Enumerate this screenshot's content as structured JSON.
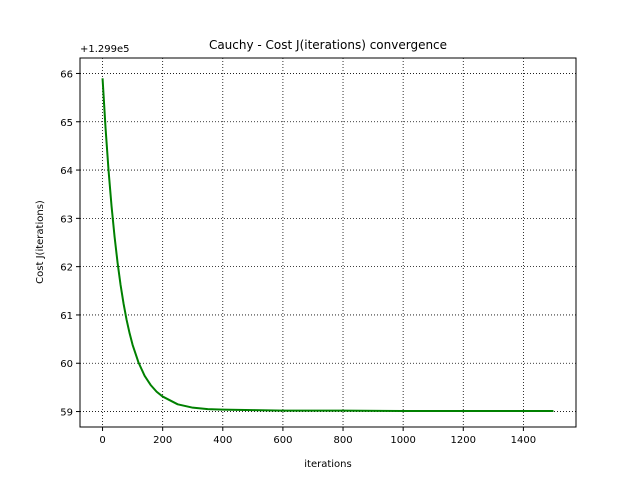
{
  "chart_data": {
    "type": "line",
    "title": "Cauchy - Cost J(iterations) convergence",
    "xlabel": "iterations",
    "ylabel": "Cost J(iterations)",
    "y_offset_label": "+1.299e5",
    "xlim": [
      -75,
      1575
    ],
    "ylim": [
      58.68,
      66.32
    ],
    "grid": true,
    "x_ticks": [
      0,
      200,
      400,
      600,
      800,
      1000,
      1200,
      1400
    ],
    "y_ticks": [
      59,
      60,
      61,
      62,
      63,
      64,
      65,
      66
    ],
    "series": [
      {
        "color": "#008000",
        "x": [
          0,
          10,
          20,
          30,
          40,
          50,
          60,
          70,
          80,
          90,
          100,
          120,
          140,
          160,
          180,
          200,
          250,
          300,
          350,
          400,
          500,
          600,
          800,
          1000,
          1200,
          1400,
          1500
        ],
        "y": [
          65.9,
          64.87,
          63.99,
          63.25,
          62.62,
          62.08,
          61.62,
          61.23,
          60.9,
          60.62,
          60.38,
          60.01,
          59.74,
          59.55,
          59.41,
          59.31,
          59.15,
          59.08,
          59.05,
          59.04,
          59.03,
          59.02,
          59.02,
          59.01,
          59.01,
          59.01,
          59.01
        ]
      }
    ]
  }
}
